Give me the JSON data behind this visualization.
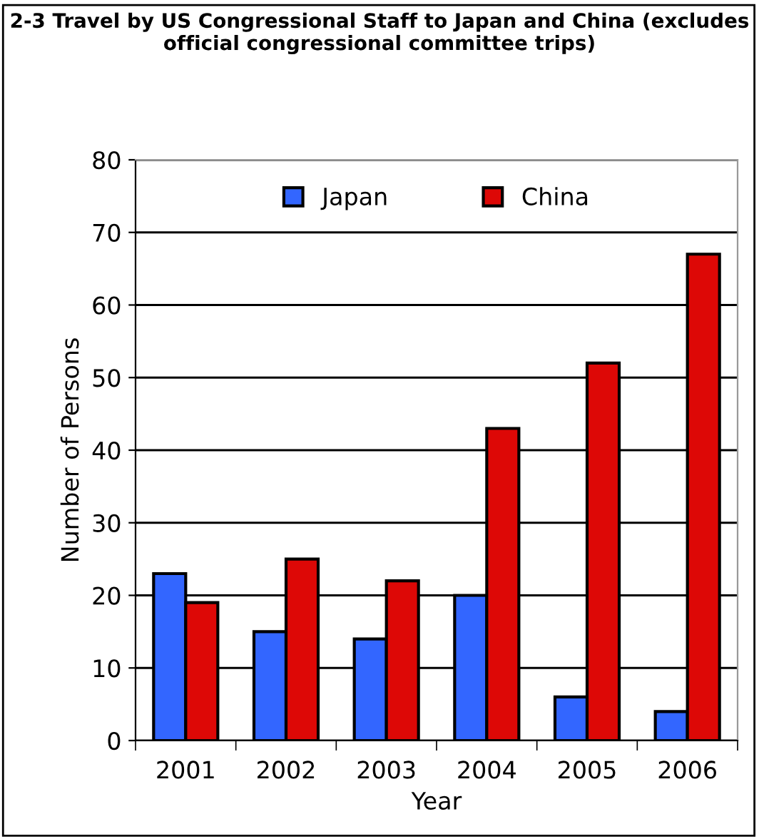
{
  "chart_data": {
    "type": "bar",
    "title": "2-3 Travel by US Congressional Staff to Japan and China (excludes official congressional committee trips)",
    "xlabel": "Year",
    "ylabel": "Number of Persons",
    "categories": [
      "2001",
      "2002",
      "2003",
      "2004",
      "2005",
      "2006"
    ],
    "series": [
      {
        "name": "Japan",
        "color": "#3366ff",
        "values": [
          23,
          15,
          14,
          20,
          6,
          4
        ]
      },
      {
        "name": "China",
        "color": "#dd0806",
        "values": [
          19,
          25,
          22,
          43,
          52,
          67
        ]
      }
    ],
    "ylim": [
      0,
      80
    ],
    "yticks": [
      0,
      10,
      20,
      30,
      40,
      50,
      60,
      70,
      80
    ],
    "grid": "y",
    "legend": "top"
  }
}
